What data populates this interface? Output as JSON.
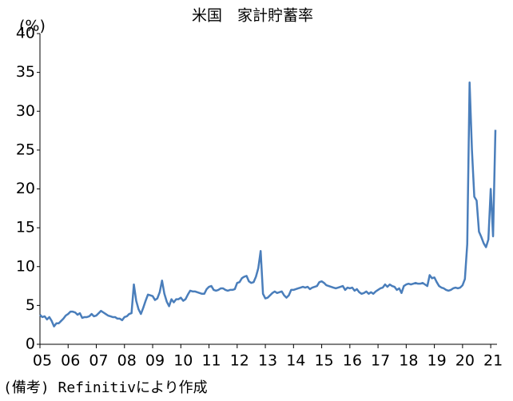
{
  "chart_data": {
    "type": "line",
    "title": "米国　家計貯蓄率",
    "y_label": "(%)",
    "note": "(備考) Refinitivにより作成",
    "categories": [
      "05",
      null,
      null,
      null,
      null,
      null,
      null,
      null,
      null,
      null,
      null,
      null,
      "06",
      null,
      null,
      null,
      null,
      null,
      null,
      null,
      null,
      null,
      null,
      null,
      "07",
      null,
      null,
      null,
      null,
      null,
      null,
      null,
      null,
      null,
      null,
      null,
      "08",
      null,
      null,
      null,
      null,
      null,
      null,
      null,
      null,
      null,
      null,
      null,
      "09",
      null,
      null,
      null,
      null,
      null,
      null,
      null,
      null,
      null,
      null,
      null,
      "10",
      null,
      null,
      null,
      null,
      null,
      null,
      null,
      null,
      null,
      null,
      null,
      "11",
      null,
      null,
      null,
      null,
      null,
      null,
      null,
      null,
      null,
      null,
      null,
      "12",
      null,
      null,
      null,
      null,
      null,
      null,
      null,
      null,
      null,
      null,
      null,
      "13",
      null,
      null,
      null,
      null,
      null,
      null,
      null,
      null,
      null,
      null,
      null,
      "14",
      null,
      null,
      null,
      null,
      null,
      null,
      null,
      null,
      null,
      null,
      null,
      "15",
      null,
      null,
      null,
      null,
      null,
      null,
      null,
      null,
      null,
      null,
      null,
      "16",
      null,
      null,
      null,
      null,
      null,
      null,
      null,
      null,
      null,
      null,
      null,
      "17",
      null,
      null,
      null,
      null,
      null,
      null,
      null,
      null,
      null,
      null,
      null,
      "18",
      null,
      null,
      null,
      null,
      null,
      null,
      null,
      null,
      null,
      null,
      null,
      "19",
      null,
      null,
      null,
      null,
      null,
      null,
      null,
      null,
      null,
      null,
      null,
      "20",
      null,
      null,
      null,
      null,
      null,
      null,
      null,
      null,
      null,
      null,
      null,
      "21",
      null,
      null
    ],
    "values": [
      3.8,
      3.5,
      3.6,
      3.2,
      3.5,
      3.0,
      2.3,
      2.7,
      2.7,
      3.0,
      3.3,
      3.7,
      3.9,
      4.2,
      4.2,
      4.1,
      3.8,
      4.0,
      3.4,
      3.5,
      3.5,
      3.6,
      3.9,
      3.6,
      3.7,
      4.0,
      4.3,
      4.1,
      3.9,
      3.7,
      3.6,
      3.5,
      3.5,
      3.3,
      3.3,
      3.1,
      3.5,
      3.6,
      3.9,
      4.0,
      7.7,
      5.6,
      4.5,
      3.9,
      4.7,
      5.6,
      6.4,
      6.3,
      6.2,
      5.7,
      5.9,
      6.7,
      8.2,
      6.5,
      5.5,
      4.9,
      5.8,
      5.4,
      5.8,
      5.8,
      6.0,
      5.6,
      5.8,
      6.4,
      6.9,
      6.8,
      6.8,
      6.7,
      6.6,
      6.5,
      6.5,
      7.1,
      7.4,
      7.5,
      7.0,
      6.9,
      7.0,
      7.2,
      7.2,
      7.0,
      6.9,
      7.0,
      7.0,
      7.1,
      7.9,
      8.0,
      8.5,
      8.7,
      8.8,
      8.1,
      7.9,
      8.0,
      8.7,
      9.8,
      12.0,
      6.5,
      5.9,
      6.0,
      6.3,
      6.6,
      6.8,
      6.6,
      6.7,
      6.8,
      6.3,
      6.0,
      6.3,
      7.0,
      7.0,
      7.1,
      7.2,
      7.3,
      7.4,
      7.3,
      7.4,
      7.1,
      7.3,
      7.4,
      7.5,
      8.0,
      8.1,
      7.9,
      7.6,
      7.5,
      7.4,
      7.3,
      7.2,
      7.3,
      7.4,
      7.5,
      7.0,
      7.3,
      7.2,
      7.3,
      6.9,
      7.1,
      6.7,
      6.5,
      6.6,
      6.8,
      6.5,
      6.7,
      6.5,
      6.8,
      7.0,
      7.2,
      7.3,
      7.7,
      7.4,
      7.7,
      7.5,
      7.4,
      7.0,
      7.2,
      6.6,
      7.5,
      7.7,
      7.8,
      7.7,
      7.8,
      7.9,
      7.8,
      7.8,
      7.9,
      7.7,
      7.5,
      8.9,
      8.5,
      8.6,
      8.0,
      7.5,
      7.3,
      7.2,
      7.0,
      6.9,
      7.0,
      7.2,
      7.3,
      7.2,
      7.3,
      7.6,
      8.4,
      12.9,
      33.7,
      25.0,
      19.0,
      18.5,
      14.5,
      13.8,
      13.0,
      12.5,
      13.5,
      20.0,
      13.9,
      27.6
    ],
    "color": "#4a7ebb",
    "ylim": [
      0,
      40
    ],
    "yticks": [
      0,
      5,
      10,
      15,
      20,
      25,
      30,
      35,
      40
    ],
    "grid": false
  }
}
